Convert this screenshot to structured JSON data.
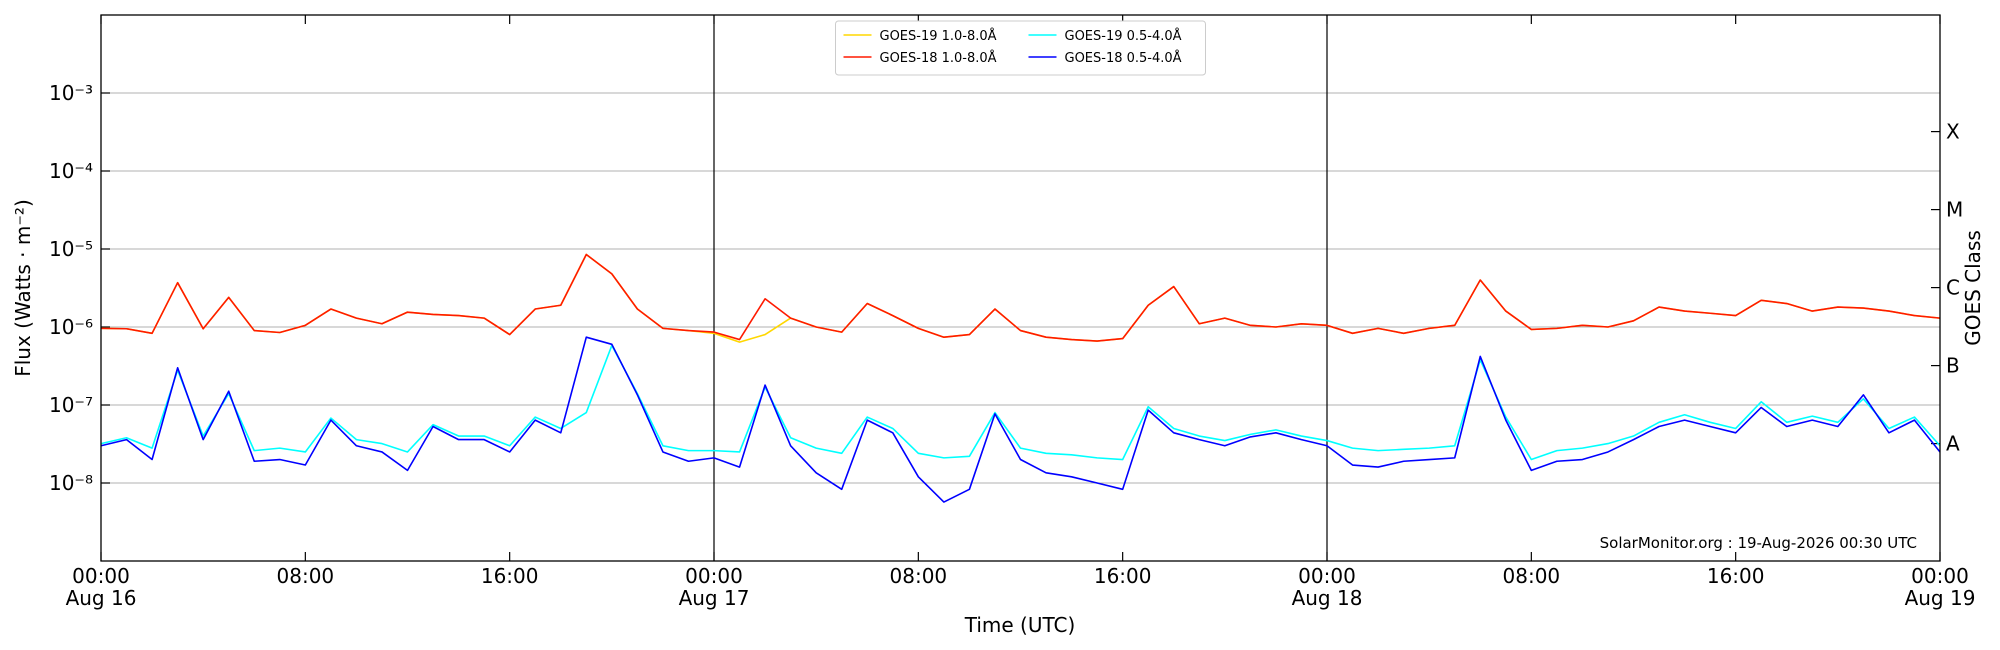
{
  "chart_data": {
    "type": "line",
    "ylabel": "Flux (Watts · m⁻²)",
    "xlabel": "Time (UTC)",
    "y2label": "GOES Class",
    "annotation": "SolarMonitor.org : 19-Aug-2026 00:30 UTC",
    "yscale": "log",
    "grid": true,
    "legend": "upper center",
    "ylim": [
      1e-09,
      0.01
    ],
    "yticks": [
      {
        "value": 1e-08,
        "label": "10⁻⁸"
      },
      {
        "value": 1e-07,
        "label": "10⁻⁷"
      },
      {
        "value": 1e-06,
        "label": "10⁻⁶"
      },
      {
        "value": 1e-05,
        "label": "10⁻⁵"
      },
      {
        "value": 0.0001,
        "label": "10⁻⁴"
      },
      {
        "value": 0.001,
        "label": "10⁻³"
      }
    ],
    "y2lim": [
      1e-09,
      0.01
    ],
    "y2ticks": [
      {
        "value": 3.2e-08,
        "label": "A"
      },
      {
        "value": 3.2e-07,
        "label": "B"
      },
      {
        "value": 3.2e-06,
        "label": "C"
      },
      {
        "value": 3.2e-05,
        "label": "M"
      },
      {
        "value": 0.00032,
        "label": "X"
      }
    ],
    "xlim": [
      "2026-08-16T00:00",
      "2026-08-19T00:00"
    ],
    "xticks": [
      {
        "value": "2026-08-16T00:00",
        "label": "00:00\nAug 16"
      },
      {
        "value": "2026-08-16T08:00",
        "label": "08:00"
      },
      {
        "value": "2026-08-16T16:00",
        "label": "16:00"
      },
      {
        "value": "2026-08-17T00:00",
        "label": "00:00\nAug 17"
      },
      {
        "value": "2026-08-17T08:00",
        "label": "08:00"
      },
      {
        "value": "2026-08-17T16:00",
        "label": "16:00"
      },
      {
        "value": "2026-08-18T00:00",
        "label": "00:00\nAug 18"
      },
      {
        "value": "2026-08-18T08:00",
        "label": "08:00"
      },
      {
        "value": "2026-08-18T16:00",
        "label": "16:00"
      },
      {
        "value": "2026-08-19T00:00",
        "label": "00:00\nAug 19"
      }
    ],
    "vlines": [
      "2026-08-17T00:00",
      "2026-08-18T00:00"
    ],
    "x": [
      "2026-08-16T00:00",
      "2026-08-16T01:00",
      "2026-08-16T02:00",
      "2026-08-16T03:00",
      "2026-08-16T04:00",
      "2026-08-16T05:00",
      "2026-08-16T06:00",
      "2026-08-16T07:00",
      "2026-08-16T08:00",
      "2026-08-16T09:00",
      "2026-08-16T10:00",
      "2026-08-16T11:00",
      "2026-08-16T12:00",
      "2026-08-16T13:00",
      "2026-08-16T14:00",
      "2026-08-16T15:00",
      "2026-08-16T16:00",
      "2026-08-16T17:00",
      "2026-08-16T18:00",
      "2026-08-16T19:00",
      "2026-08-16T20:00",
      "2026-08-16T21:00",
      "2026-08-16T22:00",
      "2026-08-16T23:00",
      "2026-08-17T00:00",
      "2026-08-17T01:00",
      "2026-08-17T02:00",
      "2026-08-17T03:00",
      "2026-08-17T04:00",
      "2026-08-17T05:00",
      "2026-08-17T06:00",
      "2026-08-17T07:00",
      "2026-08-17T08:00",
      "2026-08-17T09:00",
      "2026-08-17T10:00",
      "2026-08-17T11:00",
      "2026-08-17T12:00",
      "2026-08-17T13:00",
      "2026-08-17T14:00",
      "2026-08-17T15:00",
      "2026-08-17T16:00",
      "2026-08-17T17:00",
      "2026-08-17T18:00",
      "2026-08-17T19:00",
      "2026-08-17T20:00",
      "2026-08-17T21:00",
      "2026-08-17T22:00",
      "2026-08-17T23:00",
      "2026-08-18T00:00",
      "2026-08-18T01:00",
      "2026-08-18T02:00",
      "2026-08-18T03:00",
      "2026-08-18T04:00",
      "2026-08-18T05:00",
      "2026-08-18T06:00",
      "2026-08-18T07:00",
      "2026-08-18T08:00",
      "2026-08-18T09:00",
      "2026-08-18T10:00",
      "2026-08-18T11:00",
      "2026-08-18T12:00",
      "2026-08-18T13:00",
      "2026-08-18T14:00",
      "2026-08-18T15:00",
      "2026-08-18T16:00",
      "2026-08-18T17:00",
      "2026-08-18T18:00",
      "2026-08-18T19:00",
      "2026-08-18T20:00",
      "2026-08-18T21:00",
      "2026-08-18T22:00",
      "2026-08-18T23:00",
      "2026-08-19T00:00"
    ],
    "series": [
      {
        "name": "GOES-19 1.0-8.0Å",
        "color": "#ffd700",
        "values": [
          9.6e-07,
          9.5e-07,
          8.3e-07,
          3.7e-06,
          9.5e-07,
          2.4e-06,
          9e-07,
          8.5e-07,
          1.05e-06,
          1.7e-06,
          1.3e-06,
          1.1e-06,
          1.55e-06,
          1.45e-06,
          1.4e-06,
          1.3e-06,
          8e-07,
          1.7e-06,
          1.9e-06,
          8.5e-06,
          4.8e-06,
          1.7e-06,
          9.6e-07,
          9e-07,
          8.3e-07,
          6.4e-07,
          8e-07,
          1.3e-06,
          1e-06,
          8.6e-07,
          2e-06,
          1.4e-06,
          9.6e-07,
          7.4e-07,
          8e-07,
          1.7e-06,
          9e-07,
          7.4e-07,
          6.9e-07,
          6.6e-07,
          7.1e-07,
          1.9e-06,
          3.3e-06,
          1.1e-06,
          1.3e-06,
          1.05e-06,
          1e-06,
          1.1e-06,
          1.05e-06,
          8.3e-07,
          9.6e-07,
          8.3e-07,
          9.6e-07,
          1.05e-06,
          4e-06,
          1.6e-06,
          9.3e-07,
          9.6e-07,
          1.05e-06,
          1e-06,
          1.2e-06,
          1.8e-06,
          1.6e-06,
          1.5e-06,
          1.4e-06,
          2.2e-06,
          2e-06,
          1.6e-06,
          1.8e-06,
          1.75e-06,
          1.6e-06,
          1.4e-06,
          1.3e-06
        ]
      },
      {
        "name": "GOES-18 1.0-8.0Å",
        "color": "#ff1a00",
        "values": [
          9.6e-07,
          9.5e-07,
          8.3e-07,
          3.7e-06,
          9.5e-07,
          2.4e-06,
          9e-07,
          8.5e-07,
          1.05e-06,
          1.7e-06,
          1.3e-06,
          1.1e-06,
          1.55e-06,
          1.45e-06,
          1.4e-06,
          1.3e-06,
          8e-07,
          1.7e-06,
          1.9e-06,
          8.5e-06,
          4.8e-06,
          1.7e-06,
          9.6e-07,
          9e-07,
          8.6e-07,
          6.9e-07,
          2.3e-06,
          1.3e-06,
          1e-06,
          8.6e-07,
          2e-06,
          1.4e-06,
          9.6e-07,
          7.4e-07,
          8e-07,
          1.7e-06,
          9e-07,
          7.4e-07,
          6.9e-07,
          6.6e-07,
          7.1e-07,
          1.9e-06,
          3.3e-06,
          1.1e-06,
          1.3e-06,
          1.05e-06,
          1e-06,
          1.1e-06,
          1.05e-06,
          8.3e-07,
          9.6e-07,
          8.3e-07,
          9.6e-07,
          1.05e-06,
          4e-06,
          1.6e-06,
          9.3e-07,
          9.6e-07,
          1.05e-06,
          1e-06,
          1.2e-06,
          1.8e-06,
          1.6e-06,
          1.5e-06,
          1.4e-06,
          2.2e-06,
          2e-06,
          1.6e-06,
          1.8e-06,
          1.75e-06,
          1.6e-06,
          1.4e-06,
          1.3e-06
        ]
      },
      {
        "name": "GOES-19 0.5-4.0Å",
        "color": "#00ffff",
        "values": [
          3.2e-08,
          3.8e-08,
          2.8e-08,
          2.8e-07,
          4e-08,
          1.4e-07,
          2.6e-08,
          2.8e-08,
          2.5e-08,
          6.8e-08,
          3.6e-08,
          3.2e-08,
          2.5e-08,
          5.6e-08,
          4e-08,
          4e-08,
          3e-08,
          7e-08,
          5e-08,
          8e-08,
          5.8e-07,
          1.4e-07,
          3e-08,
          2.6e-08,
          2.6e-08,
          2.5e-08,
          1.7e-07,
          3.8e-08,
          2.8e-08,
          2.4e-08,
          7e-08,
          5e-08,
          2.4e-08,
          2.1e-08,
          2.2e-08,
          8e-08,
          2.8e-08,
          2.4e-08,
          2.3e-08,
          2.1e-08,
          2e-08,
          9.5e-08,
          5e-08,
          4e-08,
          3.5e-08,
          4.2e-08,
          4.8e-08,
          4e-08,
          3.5e-08,
          2.8e-08,
          2.6e-08,
          2.7e-08,
          2.8e-08,
          3e-08,
          3.8e-07,
          7e-08,
          2e-08,
          2.6e-08,
          2.8e-08,
          3.2e-08,
          4e-08,
          6e-08,
          7.5e-08,
          6e-08,
          5e-08,
          1.1e-07,
          6e-08,
          7.2e-08,
          6e-08,
          1.2e-07,
          5e-08,
          7e-08,
          3e-08
        ]
      },
      {
        "name": "GOES-18 0.5-4.0Å",
        "color": "#0000ff",
        "values": [
          3e-08,
          3.6e-08,
          2e-08,
          3e-07,
          3.6e-08,
          1.5e-07,
          1.9e-08,
          2e-08,
          1.7e-08,
          6.4e-08,
          3e-08,
          2.5e-08,
          1.45e-08,
          5.3e-08,
          3.6e-08,
          3.6e-08,
          2.5e-08,
          6.4e-08,
          4.4e-08,
          7.4e-07,
          6e-07,
          1.35e-07,
          2.5e-08,
          1.9e-08,
          2.1e-08,
          1.6e-08,
          1.8e-07,
          3e-08,
          1.35e-08,
          8.3e-09,
          6.4e-08,
          4.4e-08,
          1.2e-08,
          5.7e-09,
          8.3e-09,
          7.7e-08,
          2e-08,
          1.35e-08,
          1.2e-08,
          1e-08,
          8.3e-09,
          8.6e-08,
          4.4e-08,
          3.6e-08,
          3e-08,
          3.9e-08,
          4.4e-08,
          3.6e-08,
          3e-08,
          1.7e-08,
          1.6e-08,
          1.9e-08,
          2e-08,
          2.1e-08,
          4.2e-07,
          6.4e-08,
          1.45e-08,
          1.9e-08,
          2e-08,
          2.5e-08,
          3.6e-08,
          5.3e-08,
          6.4e-08,
          5.3e-08,
          4.4e-08,
          9.3e-08,
          5.3e-08,
          6.4e-08,
          5.3e-08,
          1.35e-07,
          4.4e-08,
          6.4e-08,
          2.5e-08
        ]
      }
    ]
  }
}
